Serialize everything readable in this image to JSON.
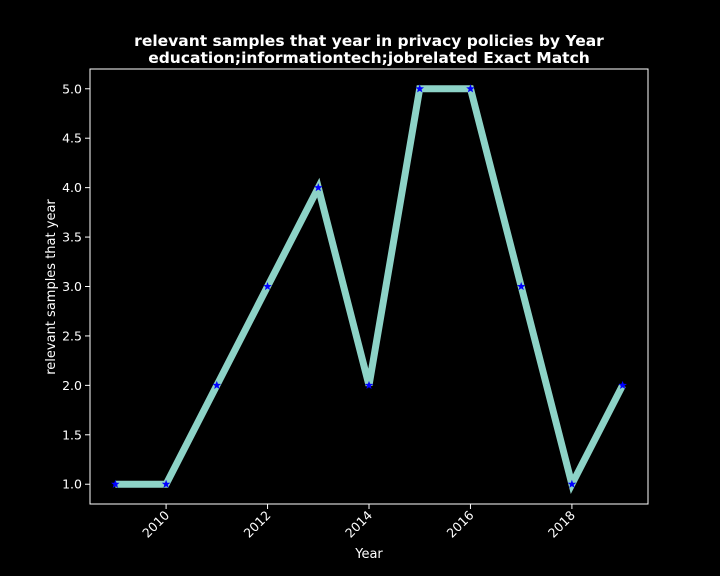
{
  "chart_data": {
    "type": "line",
    "title_line1": "relevant samples that year in privacy policies by Year",
    "title_line2": "education;informationtech;jobrelated Exact Match",
    "xlabel": "Year",
    "ylabel": "relevant samples that year",
    "x": [
      2009,
      2010,
      2011,
      2012,
      2013,
      2014,
      2015,
      2016,
      2017,
      2018,
      2019
    ],
    "values": [
      1,
      1,
      2,
      3,
      4,
      2,
      5,
      5,
      3,
      1,
      2
    ],
    "xlim": [
      2008.5,
      2019.5
    ],
    "ylim": [
      0.8,
      5.2
    ],
    "xticks": [
      "2010",
      "2012",
      "2014",
      "2016",
      "2018"
    ],
    "yticks": [
      "1.0",
      "1.5",
      "2.0",
      "2.5",
      "3.0",
      "3.5",
      "4.0",
      "4.5",
      "5.0"
    ],
    "line_color": "#8dd3c7",
    "marker_color": "#0000ff",
    "marker": "star",
    "grid": false,
    "background": "#000000"
  }
}
